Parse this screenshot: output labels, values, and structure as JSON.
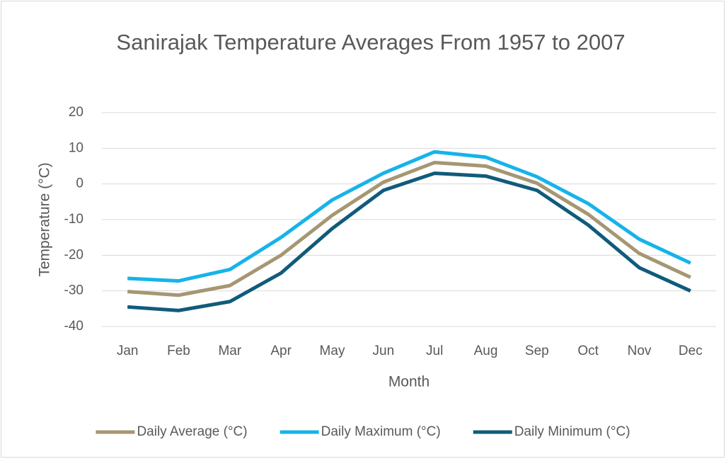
{
  "chart_data": {
    "type": "line",
    "title": "Sanirajak Temperature Averages From 1957 to 2007",
    "x_label": "Month",
    "y_label": "Temperature (°C)",
    "categories": [
      "Jan",
      "Feb",
      "Mar",
      "Apr",
      "May",
      "Jun",
      "Jul",
      "Aug",
      "Sep",
      "Oct",
      "Nov",
      "Dec"
    ],
    "series": [
      {
        "name": "Daily Average (°C)",
        "color": "#a59773",
        "values": [
          -30.2,
          -31.2,
          -28.5,
          -20,
          -8.8,
          0.5,
          6,
          5,
          0.2,
          -8.5,
          -19.5,
          -26.2
        ]
      },
      {
        "name": "Daily Maximum (°C)",
        "color": "#16b3ea",
        "values": [
          -26.5,
          -27.2,
          -24,
          -15,
          -4.5,
          3,
          9,
          7.5,
          2,
          -5.5,
          -15.5,
          -22.2
        ]
      },
      {
        "name": "Daily Minimum (°C)",
        "color": "#105b7b",
        "values": [
          -34.5,
          -35.5,
          -33,
          -25,
          -12.5,
          -1.8,
          3,
          2.2,
          -1.8,
          -11.5,
          -23.5,
          -30
        ]
      }
    ],
    "ylim": [
      -40,
      20
    ],
    "yticks": [
      -40,
      -30,
      -20,
      -10,
      0,
      10,
      20
    ],
    "grid": true,
    "legend": "bottom"
  }
}
